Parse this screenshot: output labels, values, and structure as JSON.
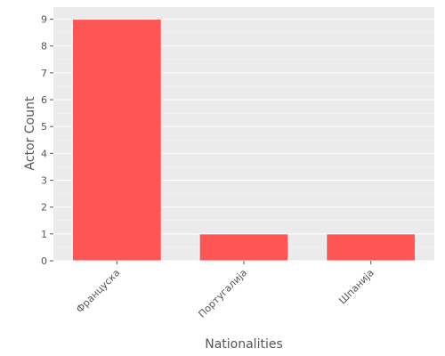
{
  "chart_data": {
    "type": "bar",
    "title": "",
    "xlabel": "Nationalities",
    "ylabel": "Actor Count",
    "categories": [
      "Француска",
      "Португалија",
      "Шпанија"
    ],
    "values": [
      9,
      1,
      1
    ],
    "ylim": [
      0,
      9.45
    ],
    "yticks": [
      "0",
      "1",
      "2",
      "3",
      "4",
      "5",
      "6",
      "7",
      "8",
      "9"
    ],
    "grid": true,
    "legend": "none",
    "colors": {
      "bar": "#ff5555",
      "bar_edge": "#ffffff",
      "panel": "#ebebeb",
      "grid": "#ffffff",
      "text": "#555555"
    }
  }
}
